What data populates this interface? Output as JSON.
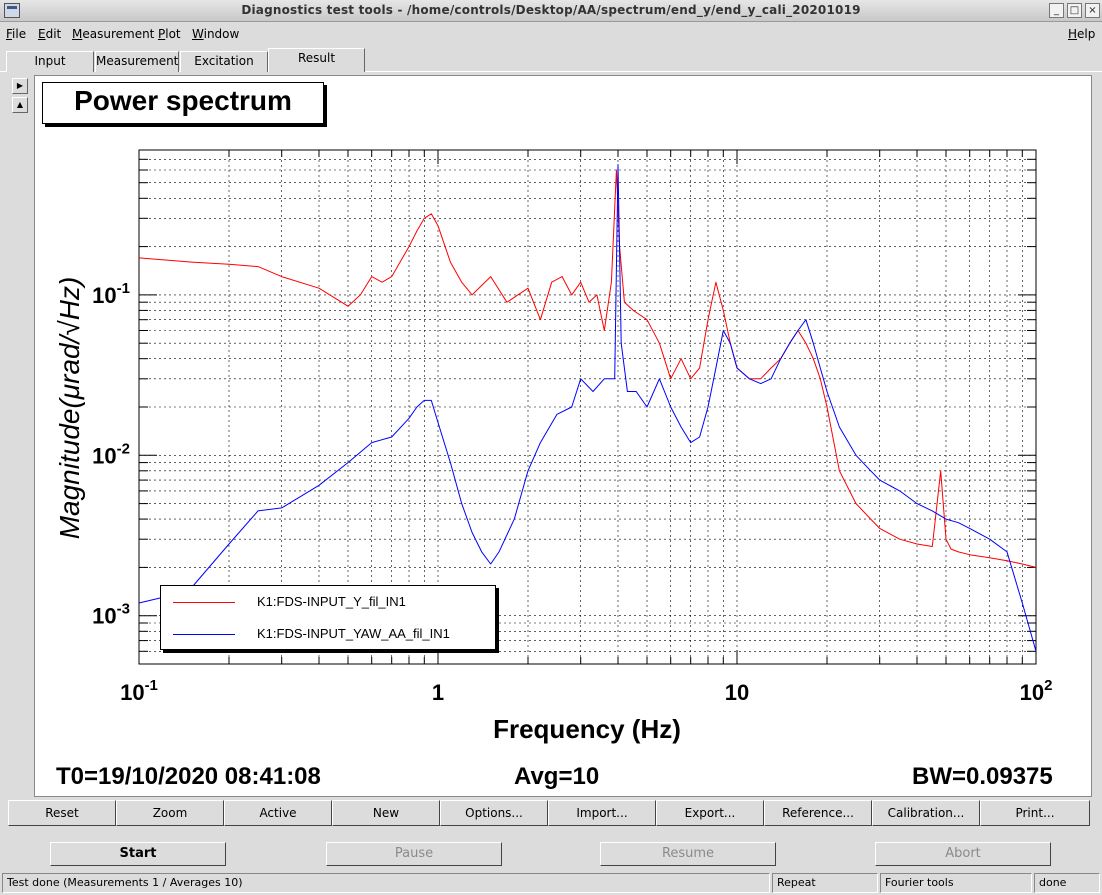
{
  "window": {
    "title": "Diagnostics test tools - /home/controls/Desktop/AA/spectrum/end_y/end_y_cali_20201019",
    "icon": "app-icon"
  },
  "menu": [
    "File",
    "Edit",
    "Measurement",
    "Plot",
    "Window"
  ],
  "help_label": "Help",
  "tabs": [
    "Input",
    "Measurement",
    "Excitation",
    "Result"
  ],
  "active_tab": "Result",
  "plot": {
    "title": "Power spectrum",
    "info_t0": "T0=19/10/2020 08:41:08",
    "info_avg": "Avg=10",
    "info_bw": "BW=0.09375"
  },
  "chart_data": {
    "type": "line",
    "xlabel": "Frequency (Hz)",
    "ylabel_prefix": "Magnitude(",
    "ylabel_unit": "μrad/√Hz",
    "ylabel_suffix": ")",
    "x_scale": "log",
    "y_scale": "log",
    "xlim": [
      0.1,
      100
    ],
    "ylim": [
      0.0005,
      0.8
    ],
    "x_ticks": [
      {
        "value": 0.1,
        "base": "10",
        "exp": "-1"
      },
      {
        "value": 1,
        "base": "1",
        "exp": ""
      },
      {
        "value": 10,
        "base": "10",
        "exp": ""
      },
      {
        "value": 100,
        "base": "10",
        "exp": "2"
      }
    ],
    "y_ticks": [
      {
        "value": 0.001,
        "base": "10",
        "exp": "-3"
      },
      {
        "value": 0.01,
        "base": "10",
        "exp": "-2"
      },
      {
        "value": 0.1,
        "base": "10",
        "exp": "-1"
      }
    ],
    "grid": true,
    "legend_position": "bottom-left",
    "series": [
      {
        "name": "K1:FDS-INPUT_Y_fil_IN1",
        "color": "#ff0000",
        "x": [
          0.1,
          0.15,
          0.2,
          0.25,
          0.3,
          0.4,
          0.5,
          0.55,
          0.6,
          0.65,
          0.7,
          0.8,
          0.85,
          0.9,
          0.95,
          1.0,
          1.1,
          1.2,
          1.3,
          1.5,
          1.7,
          2.0,
          2.2,
          2.4,
          2.6,
          2.8,
          3.0,
          3.2,
          3.4,
          3.6,
          3.8,
          3.95,
          4.05,
          4.2,
          4.5,
          5.0,
          5.5,
          6.0,
          6.5,
          7.0,
          7.5,
          8.0,
          8.5,
          9.0,
          9.5,
          10.0,
          11,
          12,
          13,
          14,
          15,
          16,
          17,
          18,
          19,
          20,
          22,
          25,
          28,
          30,
          35,
          40,
          45,
          48,
          50,
          52,
          55,
          60,
          70,
          80,
          90,
          100
        ],
        "y": [
          0.17,
          0.16,
          0.155,
          0.15,
          0.13,
          0.11,
          0.085,
          0.1,
          0.13,
          0.12,
          0.13,
          0.2,
          0.25,
          0.3,
          0.32,
          0.27,
          0.16,
          0.12,
          0.1,
          0.13,
          0.09,
          0.11,
          0.07,
          0.12,
          0.13,
          0.1,
          0.12,
          0.09,
          0.1,
          0.06,
          0.12,
          0.6,
          0.2,
          0.09,
          0.08,
          0.07,
          0.05,
          0.03,
          0.04,
          0.03,
          0.035,
          0.07,
          0.12,
          0.08,
          0.05,
          0.035,
          0.03,
          0.03,
          0.035,
          0.04,
          0.05,
          0.06,
          0.05,
          0.04,
          0.03,
          0.02,
          0.008,
          0.005,
          0.004,
          0.0035,
          0.003,
          0.0028,
          0.0027,
          0.008,
          0.003,
          0.0026,
          0.0025,
          0.0024,
          0.0023,
          0.0022,
          0.0021,
          0.002
        ]
      },
      {
        "name": "K1:FDS-INPUT_YAW_AA_fil_IN1",
        "color": "#0000ff",
        "x": [
          0.1,
          0.12,
          0.15,
          0.2,
          0.25,
          0.3,
          0.4,
          0.5,
          0.6,
          0.7,
          0.8,
          0.85,
          0.9,
          0.95,
          1.0,
          1.1,
          1.2,
          1.3,
          1.4,
          1.5,
          1.6,
          1.8,
          2.0,
          2.2,
          2.5,
          2.8,
          3.0,
          3.3,
          3.6,
          3.9,
          4.0,
          4.1,
          4.3,
          4.6,
          5.0,
          5.5,
          6.0,
          6.5,
          7.0,
          7.5,
          8.0,
          8.5,
          9.0,
          9.5,
          10,
          11,
          12,
          13,
          14,
          15,
          16,
          17,
          18,
          19,
          20,
          22,
          25,
          28,
          30,
          35,
          40,
          45,
          50,
          55,
          60,
          70,
          80,
          90,
          100
        ],
        "y": [
          0.0012,
          0.0013,
          0.0015,
          0.0028,
          0.0045,
          0.0047,
          0.0065,
          0.009,
          0.012,
          0.013,
          0.017,
          0.02,
          0.022,
          0.022,
          0.016,
          0.009,
          0.005,
          0.0033,
          0.0025,
          0.0021,
          0.0025,
          0.004,
          0.008,
          0.012,
          0.018,
          0.02,
          0.03,
          0.025,
          0.03,
          0.03,
          0.65,
          0.05,
          0.025,
          0.025,
          0.02,
          0.03,
          0.02,
          0.015,
          0.012,
          0.013,
          0.02,
          0.035,
          0.06,
          0.05,
          0.035,
          0.03,
          0.028,
          0.03,
          0.04,
          0.05,
          0.06,
          0.07,
          0.05,
          0.035,
          0.025,
          0.015,
          0.01,
          0.008,
          0.007,
          0.006,
          0.005,
          0.0045,
          0.004,
          0.0038,
          0.0035,
          0.003,
          0.0025,
          0.0012,
          0.0006
        ]
      }
    ]
  },
  "toolbar": [
    "Reset",
    "Zoom",
    "Active",
    "New",
    "Options...",
    "Import...",
    "Export...",
    "Reference...",
    "Calibration...",
    "Print..."
  ],
  "controls": {
    "start": "Start",
    "pause": "Pause",
    "resume": "Resume",
    "abort": "Abort"
  },
  "status": {
    "message": "Test done (Measurements 1 / Averages 10)",
    "mode": "Repeat",
    "tool": "Fourier tools",
    "state": "done"
  }
}
